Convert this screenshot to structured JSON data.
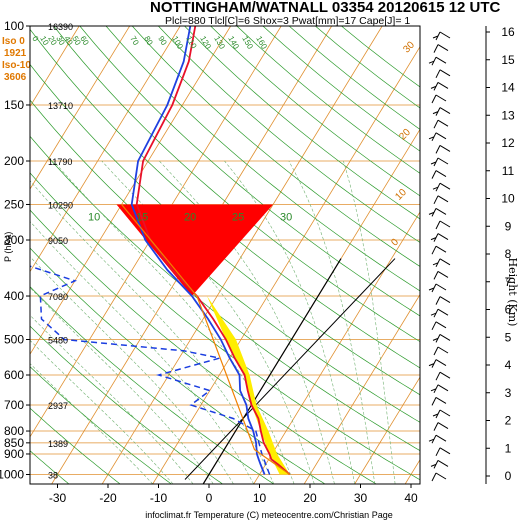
{
  "header": {
    "title": "NOTTINGHAM/WATNALL 03354 20120615 12 UTC",
    "subtitle": "Plcl=880 Tlcl[C]=6 Shox=3 Pwat[mm]=17 Cape[J]= 1"
  },
  "left_info": {
    "iso0_label": "Iso 0",
    "iso0_value": "1921",
    "iso10_label": "Iso-10",
    "iso10_value": "3606"
  },
  "axes": {
    "p_label": "P (hPa)",
    "x_label": "infoclimat.fr Temperature (C) meteocentre.com/Christian Page",
    "height_label": "Height (Km)"
  },
  "colors": {
    "temperature": "#e8102a",
    "dewpoint": "#2040e0",
    "dashed_humidity": "#1a3de0",
    "cape_fill": "#ff0000",
    "isotherm": "#e09030",
    "dry_adiabat": "#2a9a2a",
    "moist_adiabat": "#70b070"
  },
  "chart_data": {
    "type": "skew-t",
    "x_ticks": [
      "-30",
      "-20",
      "-10",
      "0",
      "10",
      "20",
      "30",
      "40"
    ],
    "x_range_c": [
      -35,
      45
    ],
    "p_ticks": [
      {
        "p": 100,
        "label": "100"
      },
      {
        "p": 150,
        "label": "150"
      },
      {
        "p": 200,
        "label": "200"
      },
      {
        "p": 250,
        "label": "250"
      },
      {
        "p": 300,
        "label": "300"
      },
      {
        "p": 400,
        "label": "400"
      },
      {
        "p": 500,
        "label": "500"
      },
      {
        "p": 600,
        "label": "600"
      },
      {
        "p": 700,
        "label": "700"
      },
      {
        "p": 800,
        "label": "800"
      },
      {
        "p": 850,
        "label": "850"
      },
      {
        "p": 900,
        "label": "900"
      },
      {
        "p": 1000,
        "label": "1000"
      }
    ],
    "geopotential_labels": [
      {
        "p": 100,
        "label": "16390"
      },
      {
        "p": 150,
        "label": "13710"
      },
      {
        "p": 200,
        "label": "11790"
      },
      {
        "p": 250,
        "label": "10290"
      },
      {
        "p": 300,
        "label": "9050"
      },
      {
        "p": 400,
        "label": "7080"
      },
      {
        "p": 500,
        "label": "5480"
      },
      {
        "p": 700,
        "label": "2937"
      },
      {
        "p": 850,
        "label": "1389"
      },
      {
        "p": 1000,
        "label": "38"
      }
    ],
    "height_ticks": [
      "0",
      "1",
      "2",
      "3",
      "4",
      "5",
      "6",
      "7",
      "8",
      "9",
      "10",
      "11",
      "12",
      "13",
      "14",
      "15",
      "16"
    ],
    "temperature_profile": [
      {
        "p": 1000,
        "t": 16
      },
      {
        "p": 950,
        "t": 12.5
      },
      {
        "p": 925,
        "t": 10.5
      },
      {
        "p": 900,
        "t": 9.5
      },
      {
        "p": 850,
        "t": 7
      },
      {
        "p": 800,
        "t": 5
      },
      {
        "p": 750,
        "t": 3
      },
      {
        "p": 700,
        "t": 0
      },
      {
        "p": 650,
        "t": -2.5
      },
      {
        "p": 600,
        "t": -5
      },
      {
        "p": 550,
        "t": -9
      },
      {
        "p": 500,
        "t": -13
      },
      {
        "p": 450,
        "t": -18
      },
      {
        "p": 400,
        "t": -24
      },
      {
        "p": 350,
        "t": -32
      },
      {
        "p": 300,
        "t": -40
      },
      {
        "p": 250,
        "t": -47
      },
      {
        "p": 200,
        "t": -51
      },
      {
        "p": 150,
        "t": -52
      },
      {
        "p": 120,
        "t": -54
      },
      {
        "p": 100,
        "t": -57
      }
    ],
    "dewpoint_profile": [
      {
        "p": 1000,
        "td": 11
      },
      {
        "p": 950,
        "td": 9
      },
      {
        "p": 925,
        "td": 8
      },
      {
        "p": 900,
        "td": 7
      },
      {
        "p": 850,
        "td": 5.5
      },
      {
        "p": 800,
        "td": 3.5
      },
      {
        "p": 750,
        "td": 1
      },
      {
        "p": 700,
        "td": -1
      },
      {
        "p": 650,
        "td": -4
      },
      {
        "p": 600,
        "td": -6
      },
      {
        "p": 550,
        "td": -10
      },
      {
        "p": 500,
        "td": -14
      },
      {
        "p": 450,
        "td": -19
      },
      {
        "p": 400,
        "td": -25
      },
      {
        "p": 350,
        "td": -33
      },
      {
        "p": 300,
        "td": -41
      },
      {
        "p": 250,
        "td": -48
      },
      {
        "p": 200,
        "td": -52
      },
      {
        "p": 150,
        "td": -53
      },
      {
        "p": 120,
        "td": -55
      },
      {
        "p": 100,
        "td": -58
      }
    ],
    "dashed_profile": [
      {
        "p": 1000,
        "v": 12
      },
      {
        "p": 900,
        "v": 8
      },
      {
        "p": 800,
        "v": 4
      },
      {
        "p": 750,
        "v": -2
      },
      {
        "p": 700,
        "v": -12
      },
      {
        "p": 650,
        "v": -10
      },
      {
        "p": 600,
        "v": -22
      },
      {
        "p": 550,
        "v": -12
      },
      {
        "p": 530,
        "v": -20
      },
      {
        "p": 500,
        "v": -45
      },
      {
        "p": 450,
        "v": -52
      },
      {
        "p": 400,
        "v": -55
      },
      {
        "p": 370,
        "v": -50
      },
      {
        "p": 340,
        "v": -62
      },
      {
        "p": 300,
        "v": -70
      },
      {
        "p": 250,
        "v": -78
      },
      {
        "p": 200,
        "v": -85
      },
      {
        "p": 150,
        "v": -92
      },
      {
        "p": 100,
        "v": -100
      }
    ],
    "cape_region": [
      {
        "p": 250,
        "t": -20
      },
      {
        "p": 250,
        "t": -51
      },
      {
        "p": 400,
        "t": -25
      }
    ],
    "dry_adiabat_labels": [
      "10",
      "15",
      "20",
      "25",
      "30"
    ],
    "isotherm_labels": [
      "0",
      "10",
      "20",
      "30"
    ],
    "moist_labels": [
      "0",
      "10",
      "20",
      "30",
      "40",
      "50",
      "60",
      "70",
      "80",
      "90",
      "100",
      "110",
      "120",
      "130",
      "140",
      "150",
      "160"
    ]
  }
}
